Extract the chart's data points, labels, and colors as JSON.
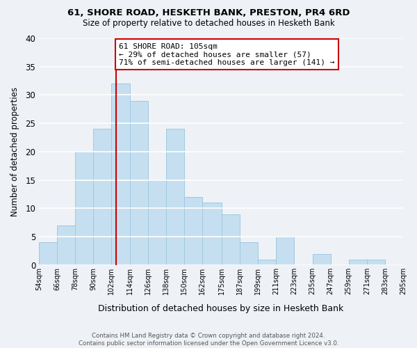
{
  "title": "61, SHORE ROAD, HESKETH BANK, PRESTON, PR4 6RD",
  "subtitle": "Size of property relative to detached houses in Hesketh Bank",
  "xlabel": "Distribution of detached houses by size in Hesketh Bank",
  "ylabel": "Number of detached properties",
  "bar_color": "#c5dff0",
  "bar_edge_color": "#a0c8e0",
  "background_color": "#eef2f7",
  "grid_color": "white",
  "bins": [
    54,
    66,
    78,
    90,
    102,
    114,
    126,
    138,
    150,
    162,
    175,
    187,
    199,
    211,
    223,
    235,
    247,
    259,
    271,
    283,
    295
  ],
  "bin_labels": [
    "54sqm",
    "66sqm",
    "78sqm",
    "90sqm",
    "102sqm",
    "114sqm",
    "126sqm",
    "138sqm",
    "150sqm",
    "162sqm",
    "175sqm",
    "187sqm",
    "199sqm",
    "211sqm",
    "223sqm",
    "235sqm",
    "247sqm",
    "259sqm",
    "271sqm",
    "283sqm",
    "295sqm"
  ],
  "values": [
    4,
    7,
    20,
    24,
    32,
    29,
    15,
    24,
    12,
    11,
    9,
    4,
    1,
    5,
    0,
    2,
    0,
    1,
    1,
    0
  ],
  "ylim": [
    0,
    40
  ],
  "yticks": [
    0,
    5,
    10,
    15,
    20,
    25,
    30,
    35,
    40
  ],
  "vline_x": 105,
  "vline_color": "#cc0000",
  "annotation_title": "61 SHORE ROAD: 105sqm",
  "annotation_line1": "← 29% of detached houses are smaller (57)",
  "annotation_line2": "71% of semi-detached houses are larger (141) →",
  "annotation_box_color": "white",
  "annotation_box_edge_color": "#cc0000",
  "footer_line1": "Contains HM Land Registry data © Crown copyright and database right 2024.",
  "footer_line2": "Contains public sector information licensed under the Open Government Licence v3.0."
}
